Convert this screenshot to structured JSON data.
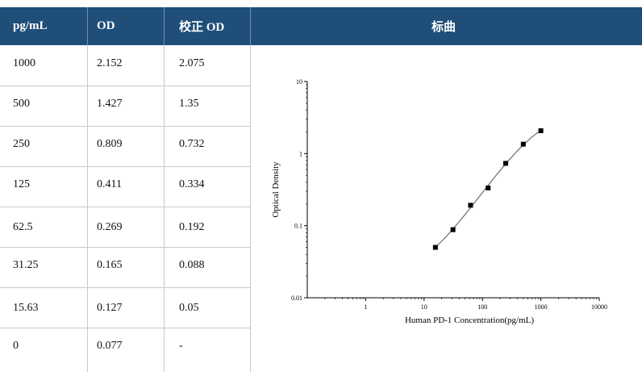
{
  "headers": [
    "pg/mL",
    "OD",
    "校正 OD",
    "标曲"
  ],
  "rows": [
    [
      "1000",
      "2.152",
      "2.075"
    ],
    [
      "500",
      "1.427",
      "1.35"
    ],
    [
      "250",
      "0.809",
      "0.732"
    ],
    [
      "125",
      "0.411",
      "0.334"
    ],
    [
      "62.5",
      "0.269",
      "0.192"
    ],
    [
      "31.25",
      "0.165",
      "0.088"
    ],
    [
      "15.63",
      "0.127",
      "0.05"
    ],
    [
      "0",
      "0.077",
      "-"
    ]
  ],
  "chart_data": {
    "type": "scatter",
    "xlabel": "Human PD-1 Concentration(pg/mL)",
    "ylabel": "Optical Density",
    "xscale": "log",
    "yscale": "log",
    "xlim": [
      0.1,
      10000
    ],
    "ylim": [
      0.01,
      10
    ],
    "xticks": [
      "1",
      "10",
      "100",
      "1000",
      "10000"
    ],
    "yticks": [
      "0.01",
      "0.1",
      "1",
      "10"
    ],
    "series": [
      {
        "x": [
          15.63,
          31.25,
          62.5,
          125,
          250,
          500,
          1000
        ],
        "y": [
          0.05,
          0.088,
          0.192,
          0.334,
          0.732,
          1.35,
          2.075
        ]
      }
    ],
    "fit_curve": true,
    "grid": false
  }
}
